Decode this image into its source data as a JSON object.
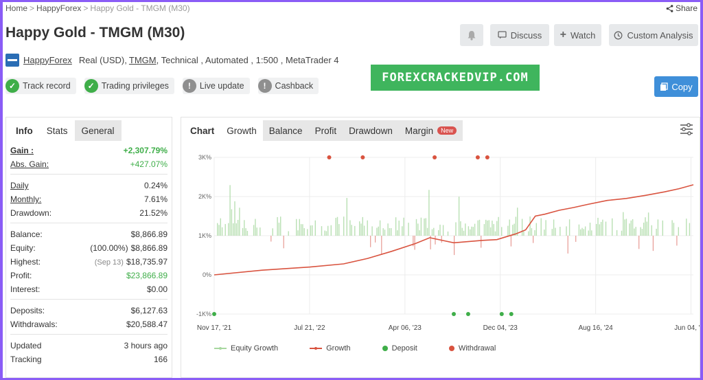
{
  "breadcrumb": [
    "Home",
    "HappyForex",
    "Happy Gold - TMGM (M30)"
  ],
  "share_label": "Share",
  "page_title": "Happy Gold - TMGM (M30)",
  "header_buttons": {
    "discuss": "Discuss",
    "watch": "Watch",
    "custom_analysis": "Custom Analysis"
  },
  "account": {
    "author": "HappyForex",
    "type": "Real (USD),",
    "broker": "TMGM",
    "rest": ", Technical , Automated , 1:500 , MetaTrader 4"
  },
  "badges": {
    "track_record": "Track record",
    "trading_privileges": "Trading privileges",
    "live_update": "Live update",
    "cashback": "Cashback"
  },
  "watermark_text": "FOREXCRACKEDVIP.COM",
  "copy_label": "Copy",
  "stats_tabs": [
    "Info",
    "Stats",
    "General"
  ],
  "stats": {
    "gain": {
      "label": "Gain :",
      "value": "+2,307.79%"
    },
    "abs_gain": {
      "label": "Abs. Gain:",
      "value": "+427.07%"
    },
    "daily": {
      "label": "Daily",
      "value": "0.24%"
    },
    "monthly": {
      "label": "Monthly:",
      "value": "7.61%"
    },
    "drawdown": {
      "label": "Drawdown:",
      "value": "21.52%"
    },
    "balance": {
      "label": "Balance:",
      "value": "$8,866.89"
    },
    "equity": {
      "label": "Equity:",
      "note": "(100.00%)",
      "value": "$8,866.89"
    },
    "highest": {
      "label": "Highest:",
      "note": "(Sep 13)",
      "value": "$18,735.97"
    },
    "profit": {
      "label": "Profit:",
      "value": "$23,866.89"
    },
    "interest": {
      "label": "Interest:",
      "value": "$0.00"
    },
    "deposits": {
      "label": "Deposits:",
      "value": "$6,127.63"
    },
    "withdrawals": {
      "label": "Withdrawals:",
      "value": "$20,588.47"
    },
    "updated": {
      "label": "Updated",
      "value": "3 hours ago"
    },
    "tracking": {
      "label": "Tracking",
      "value": "166"
    }
  },
  "chart_tabs": [
    "Chart",
    "Growth",
    "Balance",
    "Profit",
    "Drawdown",
    "Margin"
  ],
  "new_badge": "New",
  "colors": {
    "growth_line": "#d9533f",
    "equity_growth": "#a8d8a0",
    "deposit": "#3fae49",
    "withdrawal": "#d9533f",
    "positive": "#3fae49",
    "copy_button": "#3f8fd9",
    "watermark": "#3fb55d"
  },
  "chart_data": {
    "type": "line",
    "y_axis_ticks": [
      "3K%",
      "2K%",
      "1K%",
      "0%",
      "-1K%"
    ],
    "y_range": [
      -1000,
      3000
    ],
    "x_axis_ticks": [
      "Nov 17, '21",
      "Jul 21, '22",
      "Apr 06, '23",
      "Dec 04, '23",
      "Aug 16, '24",
      "Jun 04, '25"
    ],
    "series": [
      {
        "name": "Growth",
        "points_by_fraction_of_time": [
          [
            0.0,
            0
          ],
          [
            0.1,
            120
          ],
          [
            0.2,
            200
          ],
          [
            0.27,
            280
          ],
          [
            0.32,
            420
          ],
          [
            0.37,
            600
          ],
          [
            0.42,
            800
          ],
          [
            0.45,
            950
          ],
          [
            0.48,
            870
          ],
          [
            0.5,
            820
          ],
          [
            0.53,
            850
          ],
          [
            0.56,
            880
          ],
          [
            0.59,
            900
          ],
          [
            0.63,
            1050
          ],
          [
            0.65,
            1150
          ],
          [
            0.67,
            1500
          ],
          [
            0.69,
            1550
          ],
          [
            0.72,
            1650
          ],
          [
            0.75,
            1720
          ],
          [
            0.78,
            1800
          ],
          [
            0.82,
            1900
          ],
          [
            0.86,
            1950
          ],
          [
            0.9,
            2030
          ],
          [
            0.94,
            2120
          ],
          [
            0.97,
            2200
          ],
          [
            1.0,
            2300
          ]
        ]
      },
      {
        "name": "Equity Growth"
      },
      {
        "name": "Deposit",
        "x_fraction": [
          0.0,
          0.5,
          0.53,
          0.6,
          0.62
        ]
      },
      {
        "name": "Withdrawal",
        "x_fraction": [
          0.24,
          0.31,
          0.46,
          0.55,
          0.57
        ]
      }
    ],
    "legend": [
      "Equity Growth",
      "Growth",
      "Deposit",
      "Withdrawal"
    ]
  }
}
